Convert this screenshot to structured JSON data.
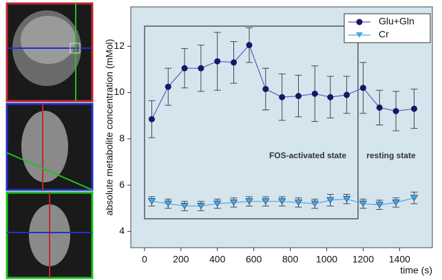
{
  "chart_data": {
    "type": "line",
    "ylabel": "absolute metabolite concentration (mMol)",
    "xlabel": "time (s)",
    "annotations": [
      "FOS-activated state",
      "resting state"
    ],
    "x": [
      40,
      130,
      220,
      310,
      400,
      490,
      575,
      665,
      755,
      845,
      935,
      1020,
      1110,
      1200,
      1290,
      1380,
      1480
    ],
    "series": [
      {
        "name": "Glu+Gln",
        "color": "#16166a",
        "line_color": "#5a5ab4",
        "marker": "circle",
        "values": [
          8.85,
          10.25,
          11.05,
          11.05,
          11.35,
          11.3,
          12.05,
          10.15,
          9.8,
          9.85,
          9.95,
          9.8,
          9.9,
          10.2,
          9.35,
          9.2,
          9.3
        ],
        "errors": [
          0.8,
          0.8,
          0.85,
          1.0,
          1.25,
          0.9,
          0.75,
          0.9,
          1.0,
          0.9,
          1.2,
          0.9,
          0.8,
          1.1,
          0.75,
          0.85,
          0.85
        ]
      },
      {
        "name": "Cr",
        "color": "#4aa8e0",
        "line_color": "#4aa8e0",
        "marker": "triangle",
        "values": [
          5.3,
          5.2,
          5.1,
          5.1,
          5.2,
          5.25,
          5.3,
          5.3,
          5.3,
          5.25,
          5.2,
          5.35,
          5.4,
          5.2,
          5.15,
          5.25,
          5.45
        ],
        "errors": [
          0.2,
          0.2,
          0.2,
          0.2,
          0.2,
          0.2,
          0.2,
          0.2,
          0.2,
          0.2,
          0.2,
          0.25,
          0.2,
          0.2,
          0.2,
          0.2,
          0.25
        ]
      }
    ],
    "xlim": [
      -75,
      1580
    ],
    "xticks": [
      0,
      200,
      400,
      600,
      800,
      1000,
      1200,
      1400
    ],
    "ylim": [
      3.3,
      13.7
    ],
    "yticks": [
      4,
      6,
      8,
      10,
      12
    ],
    "background": "#d5e5ee",
    "legend": "top-right"
  }
}
